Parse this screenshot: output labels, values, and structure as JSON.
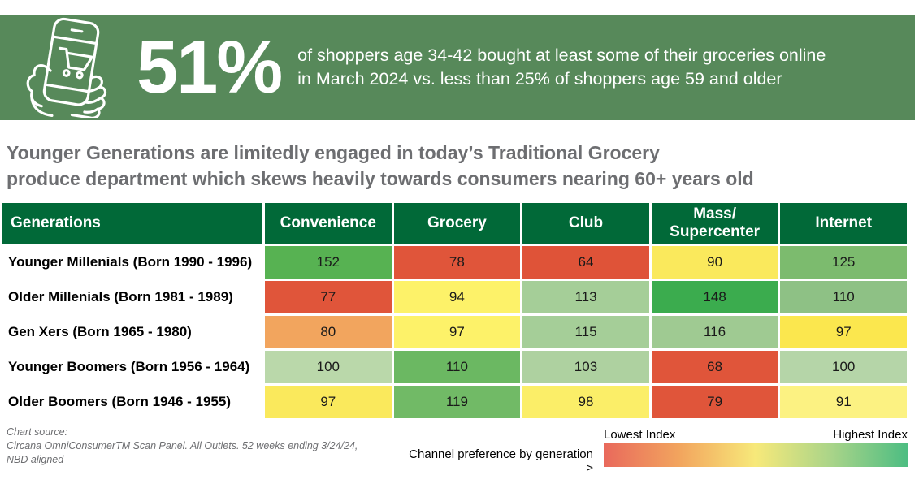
{
  "banner": {
    "stat": "51%",
    "line1": "of shoppers age 34-42 bought at least some of their groceries online",
    "line2": "in March 2024 vs. less than 25% of shoppers age 59 and older",
    "icon": "hand-holding-phone-with-shopping-cart-icon"
  },
  "title": {
    "line1": "Younger Generations are limitedly engaged in today’s Traditional Grocery",
    "line2": "produce department which skews heavily towards consumers nearing 60+ years old"
  },
  "chart_data": {
    "type": "heatmap",
    "title": "Produce department purchase index by generation and channel",
    "columns": [
      "Generations",
      "Convenience",
      "Grocery",
      "Club",
      "Mass/\nSupercenter",
      "Internet"
    ],
    "rows": [
      {
        "label": "Younger Millenials (Born 1990 - 1996)",
        "values": [
          152,
          78,
          64,
          90,
          125
        ]
      },
      {
        "label": "Older Millenials (Born 1981 - 1989)",
        "values": [
          77,
          94,
          113,
          148,
          110
        ]
      },
      {
        "label": "Gen Xers (Born 1965 - 1980)",
        "values": [
          80,
          97,
          115,
          116,
          97
        ]
      },
      {
        "label": "Younger Boomers (Born 1956 - 1964)",
        "values": [
          100,
          110,
          103,
          68,
          100
        ]
      },
      {
        "label": "Older Boomers (Born 1946 - 1955)",
        "values": [
          97,
          119,
          98,
          79,
          91
        ]
      }
    ],
    "cell_colors": [
      [
        "#57b252",
        "#e0553a",
        "#df5338",
        "#fae95c",
        "#7cbb6e"
      ],
      [
        "#e0553a",
        "#fdf269",
        "#a5ce98",
        "#3bac4e",
        "#8ec185"
      ],
      [
        "#f2a55e",
        "#fdf269",
        "#a5ce98",
        "#9fca92",
        "#fbe74e"
      ],
      [
        "#bad8aa",
        "#6bb862",
        "#aed1a0",
        "#e0553a",
        "#b5d5a8"
      ],
      [
        "#fae95c",
        "#71ba66",
        "#fbee68",
        "#e0553a",
        "#fcf282"
      ]
    ],
    "legend": {
      "note": "Channel preference by generation >",
      "lowest": "Lowest Index",
      "highest": "Highest Index",
      "gradient": [
        "#e9695c",
        "#f2a55e",
        "#f7e97a",
        "#a9d489",
        "#4dbd82"
      ]
    }
  },
  "footer": {
    "source_line1": "Chart source:",
    "source_line2": "Circana OmniConsumerTM Scan Panel. All Outlets. 52 weeks ending 3/24/24,",
    "source_line3": "NBD aligned"
  },
  "colors": {
    "banner_green": "#57895a",
    "header_green": "#016938",
    "title_gray": "#6d6e71"
  }
}
